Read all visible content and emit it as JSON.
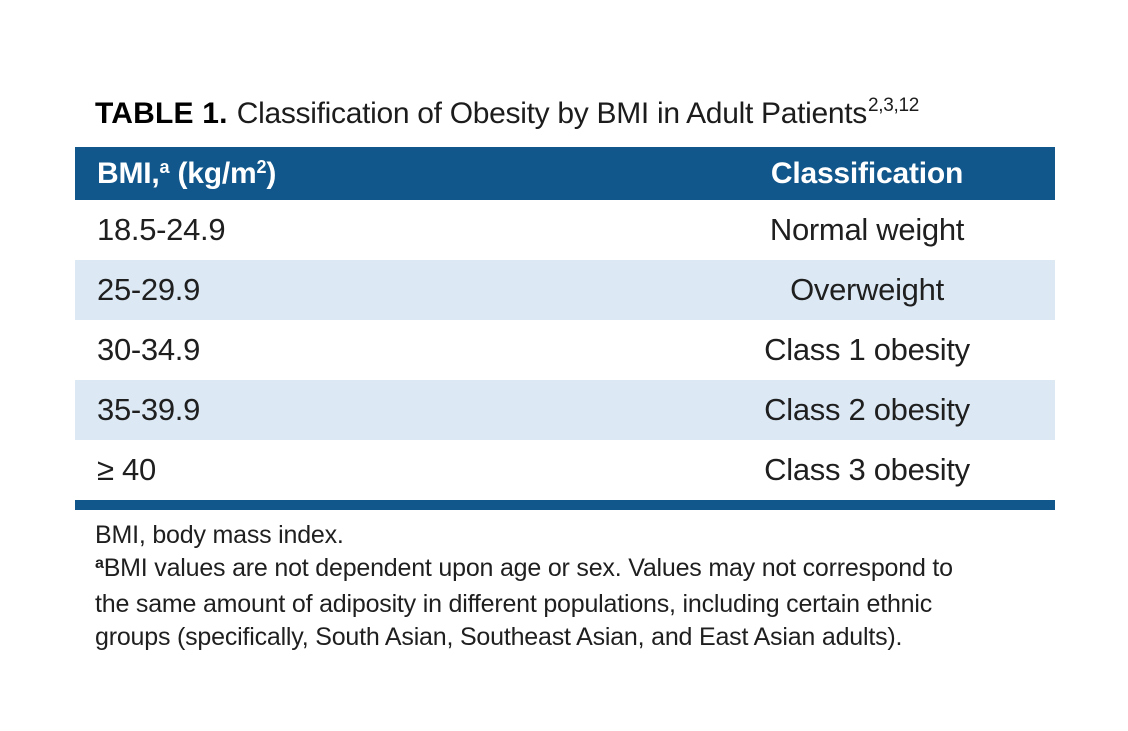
{
  "title": {
    "label": "TABLE 1.",
    "text": "Classification of Obesity by BMI in Adult Patients",
    "superscript": "2,3,12"
  },
  "table": {
    "header": {
      "bmi_pre": "BMI,",
      "bmi_sup_a": "a",
      "bmi_mid": " (kg/m",
      "bmi_sup_2": "2",
      "bmi_post": ")",
      "classification": "Classification"
    },
    "rows": [
      {
        "bmi": "18.5-24.9",
        "classification": "Normal weight"
      },
      {
        "bmi": "25-29.9",
        "classification": "Overweight"
      },
      {
        "bmi": "30-34.9",
        "classification": "Class 1 obesity"
      },
      {
        "bmi": "35-39.9",
        "classification": "Class 2 obesity"
      },
      {
        "bmi": "≥ 40",
        "classification": "Class 3 obesity"
      }
    ]
  },
  "footnotes": {
    "abbreviation": "BMI, body mass index.",
    "marker": "a",
    "lines": [
      "BMI values are not dependent upon age or sex. Values may not correspond to",
      "the same amount of adiposity in different populations, including certain ethnic",
      "groups (specifically, South Asian, Southeast Asian, and East Asian adults)."
    ]
  },
  "colors": {
    "header_background": "#12578B",
    "alternate_row_background": "#DCE9F5",
    "bottom_rule": "#12578B",
    "header_text": "#FFFFFF",
    "body_text": "#1F1F1F"
  }
}
